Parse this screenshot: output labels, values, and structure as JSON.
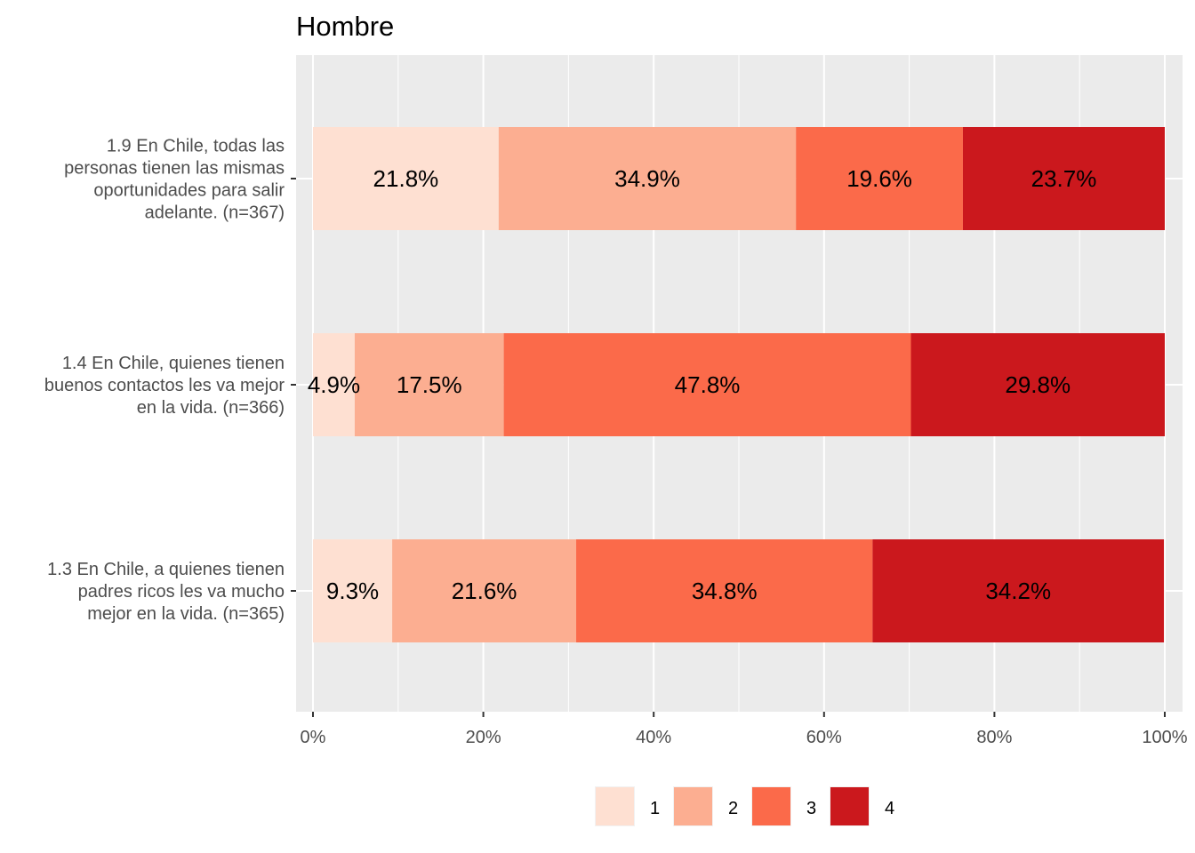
{
  "chart_data": {
    "type": "bar",
    "orientation": "horizontal",
    "stacked": "percent",
    "title": "Hombre",
    "xlabel": "",
    "ylabel": "",
    "xlim": [
      0,
      100
    ],
    "x_ticks": [
      "0%",
      "20%",
      "40%",
      "60%",
      "80%",
      "100%"
    ],
    "grid": true,
    "legend_position": "bottom",
    "categories": [
      [
        "1.9 En Chile, todas las",
        "personas tienen las mismas",
        "oportunidades para salir",
        "adelante. (n=367)"
      ],
      [
        "1.4 En Chile, quienes tienen",
        "buenos contactos les va mejor",
        "en la vida. (n=366)"
      ],
      [
        "1.3 En Chile, a quienes tienen",
        "padres ricos les va mucho",
        "mejor en la vida. (n=365)"
      ]
    ],
    "series": [
      {
        "name": "1",
        "color": "#fee0d2",
        "values": [
          21.8,
          4.9,
          9.3
        ],
        "labels": [
          "21.8%",
          "4.9%",
          "9.3%"
        ]
      },
      {
        "name": "2",
        "color": "#fcae91",
        "values": [
          34.9,
          17.5,
          21.6
        ],
        "labels": [
          "34.9%",
          "17.5%",
          "21.6%"
        ]
      },
      {
        "name": "3",
        "color": "#fb6a4a",
        "values": [
          19.6,
          47.8,
          34.8
        ],
        "labels": [
          "19.6%",
          "47.8%",
          "34.8%"
        ]
      },
      {
        "name": "4",
        "color": "#cb181d",
        "values": [
          23.7,
          29.8,
          34.2
        ],
        "labels": [
          "23.7%",
          "29.8%",
          "34.2%"
        ]
      }
    ],
    "panel_background": "#ebebeb",
    "gridline_color": "#ffffff"
  }
}
